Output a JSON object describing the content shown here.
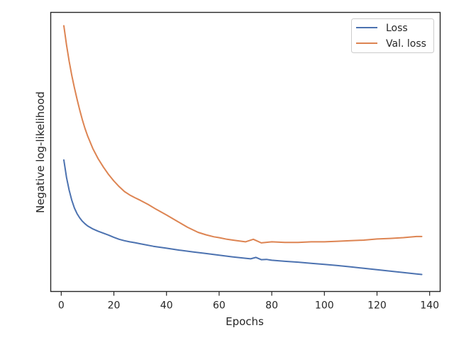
{
  "chart_data": {
    "type": "line",
    "title": "",
    "xlabel": "Epochs",
    "ylabel": "Negative log-likelihood",
    "xlim": [
      -4,
      144
    ],
    "ylim": [
      0,
      100
    ],
    "xticks": [
      0,
      20,
      40,
      60,
      80,
      100,
      120,
      140
    ],
    "yticks_visible": false,
    "grid": false,
    "legend_position": "upper right",
    "series": [
      {
        "name": "Loss",
        "color": "#4c72b0",
        "x": [
          1,
          2,
          3,
          4,
          5,
          6,
          7,
          8,
          9,
          10,
          12,
          14,
          16,
          18,
          20,
          22,
          24,
          26,
          28,
          30,
          35,
          40,
          45,
          50,
          55,
          60,
          65,
          70,
          72,
          74,
          76,
          78,
          80,
          85,
          90,
          95,
          100,
          105,
          110,
          115,
          120,
          125,
          130,
          135,
          137
        ],
        "y": [
          47.1,
          40.8,
          36.3,
          32.7,
          29.9,
          27.9,
          26.4,
          25.2,
          24.3,
          23.5,
          22.4,
          21.6,
          20.9,
          20.2,
          19.4,
          18.7,
          18.2,
          17.8,
          17.5,
          17.1,
          16.2,
          15.5,
          14.8,
          14.2,
          13.6,
          13.0,
          12.4,
          11.9,
          11.7,
          12.2,
          11.4,
          11.5,
          11.2,
          10.8,
          10.5,
          10.1,
          9.7,
          9.3,
          8.8,
          8.3,
          7.8,
          7.3,
          6.8,
          6.3,
          6.1
        ]
      },
      {
        "name": "Val. loss",
        "color": "#dd8452",
        "x": [
          1,
          2,
          3,
          4,
          5,
          6,
          7,
          8,
          9,
          10,
          12,
          14,
          16,
          18,
          20,
          22,
          24,
          26,
          28,
          30,
          33,
          36,
          40,
          44,
          48,
          52,
          55,
          58,
          60,
          63,
          66,
          70,
          73,
          76,
          80,
          85,
          90,
          95,
          100,
          105,
          110,
          115,
          120,
          125,
          130,
          135,
          137
        ],
        "y": [
          95.2,
          88.3,
          82.5,
          77.4,
          73.0,
          68.9,
          65.1,
          61.6,
          58.5,
          55.8,
          51.2,
          47.6,
          44.6,
          41.9,
          39.6,
          37.6,
          35.8,
          34.6,
          33.6,
          32.7,
          31.2,
          29.5,
          27.4,
          25.2,
          23.0,
          21.2,
          20.3,
          19.6,
          19.3,
          18.7,
          18.3,
          17.8,
          18.7,
          17.4,
          17.8,
          17.6,
          17.6,
          17.8,
          17.8,
          18.0,
          18.2,
          18.4,
          18.8,
          19.0,
          19.3,
          19.7,
          19.7
        ]
      }
    ]
  }
}
